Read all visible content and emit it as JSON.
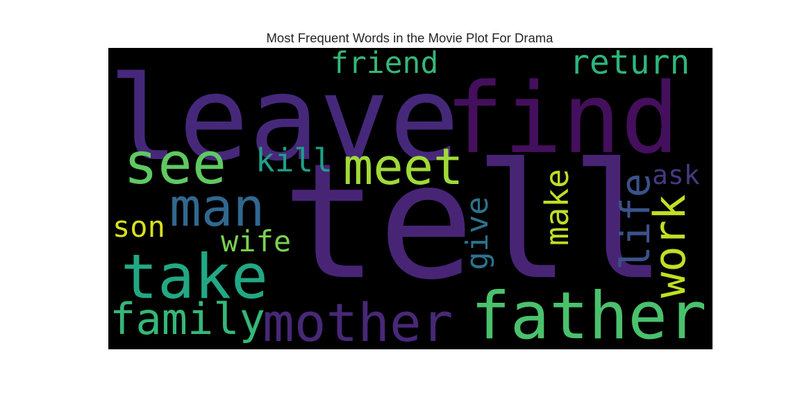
{
  "chart_data": {
    "type": "wordcloud",
    "title": "Most Frequent Words in the Movie Plot For Drama",
    "background": "#000000",
    "colormap": "viridis",
    "words": [
      {
        "text": "tell",
        "size": 230,
        "color": "#482475"
      },
      {
        "text": "leave",
        "size": 168,
        "color": "#46287a"
      },
      {
        "text": "find",
        "size": 140,
        "color": "#440f5c"
      },
      {
        "text": "father",
        "size": 94,
        "color": "#4ac16d"
      },
      {
        "text": "take",
        "size": 88,
        "color": "#22a884"
      },
      {
        "text": "see",
        "size": 82,
        "color": "#5ec962"
      },
      {
        "text": "mother",
        "size": 76,
        "color": "#482878"
      },
      {
        "text": "man",
        "size": 76,
        "color": "#31688e"
      },
      {
        "text": "meet",
        "size": 72,
        "color": "#a0da39"
      },
      {
        "text": "work",
        "size": 62,
        "color": "#c2df23"
      },
      {
        "text": "family",
        "size": 62,
        "color": "#35b779"
      },
      {
        "text": "life",
        "size": 58,
        "color": "#3b528b"
      },
      {
        "text": "return",
        "size": 48,
        "color": "#2fb47c"
      },
      {
        "text": "make",
        "size": 46,
        "color": "#bddf26"
      },
      {
        "text": "kill",
        "size": 46,
        "color": "#1fa088"
      },
      {
        "text": "give",
        "size": 44,
        "color": "#2c728e"
      },
      {
        "text": "friend",
        "size": 43,
        "color": "#35b779"
      },
      {
        "text": "son",
        "size": 42,
        "color": "#d8e219"
      },
      {
        "text": "wife",
        "size": 42,
        "color": "#7ad151"
      },
      {
        "text": "ask",
        "size": 38,
        "color": "#443983"
      }
    ]
  }
}
